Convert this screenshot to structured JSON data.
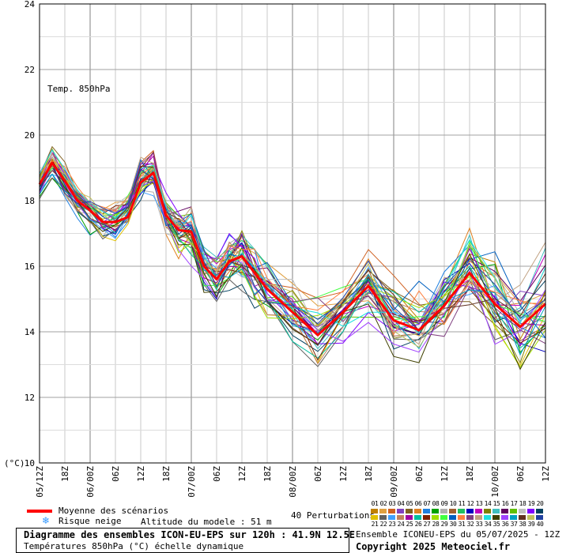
{
  "chart_data": {
    "type": "line",
    "title": "Diagramme des ensembles ICON-EU-EPS sur 120h : 41.9N 12.5E",
    "variable_label": "Temp. 850hPa",
    "ylabel": "(°C)",
    "ylim": [
      10,
      24
    ],
    "y_ticks": [
      10,
      12,
      14,
      16,
      18,
      20,
      22,
      24
    ],
    "x_ticks": [
      "05/12Z",
      "18Z",
      "06/00Z",
      "06Z",
      "12Z",
      "18Z",
      "07/00Z",
      "06Z",
      "12Z",
      "18Z",
      "08/00Z",
      "06Z",
      "12Z",
      "18Z",
      "09/00Z",
      "06Z",
      "12Z",
      "18Z",
      "10/00Z",
      "06Z",
      "12Z"
    ],
    "x_hours": [
      0,
      6,
      12,
      18,
      24,
      30,
      36,
      42,
      48,
      54,
      60,
      66,
      72,
      78,
      84,
      90,
      96,
      102,
      108,
      114,
      120
    ],
    "grid": true,
    "mean_series": {
      "name": "Moyenne des scénarios",
      "color": "#ff0000",
      "hours": [
        0,
        3,
        6,
        9,
        12,
        15,
        18,
        21,
        24,
        27,
        30,
        33,
        36,
        39,
        42,
        45,
        48,
        51,
        54,
        60,
        66,
        72,
        78,
        84,
        90,
        96,
        102,
        108,
        114,
        120
      ],
      "values": [
        18.5,
        19.15,
        18.6,
        18.0,
        17.7,
        17.35,
        17.35,
        17.5,
        18.55,
        18.85,
        17.55,
        17.1,
        17.05,
        16.0,
        15.6,
        16.15,
        16.3,
        15.8,
        15.3,
        14.6,
        13.9,
        14.6,
        15.4,
        14.35,
        14.05,
        14.8,
        15.8,
        14.85,
        14.15,
        14.85
      ]
    },
    "perturbations": {
      "count": 40,
      "hours": [
        0,
        3,
        6,
        9,
        12,
        15,
        18,
        21,
        24,
        27,
        30,
        33,
        36,
        39,
        42,
        45,
        48,
        51,
        54,
        60,
        66,
        72,
        78,
        84,
        90,
        96,
        102,
        108,
        114,
        120
      ],
      "colors": [
        "#c08000",
        "#e0a040",
        "#d06020",
        "#8040c0",
        "#806020",
        "#e08020",
        "#2080e0",
        "#00a000",
        "#b0b0b0",
        "#a06030",
        "#20c060",
        "#0000c0",
        "#c000c0",
        "#808000",
        "#40c0c0",
        "#600060",
        "#60c000",
        "#c0c0c0",
        "#8000ff",
        "#004060",
        "#e0c000",
        "#606060",
        "#40a0ff",
        "#c08060",
        "#a000a0",
        "#00c0a0",
        "#802000",
        "#a0e000",
        "#40ff40",
        "#0060c0",
        "#ff8040",
        "#804080",
        "#c0a080",
        "#20e0e0",
        "#404000",
        "#a040ff",
        "#00a0c0",
        "#603020",
        "#c0c060",
        "#2040a0"
      ]
    },
    "legend": {
      "mean_label": "Moyenne des scénarios",
      "snow_label": "Risque neige",
      "altitude_label": "Altitude du modele : 51 m",
      "perturbations_label": "40 Perturbations",
      "top_row_numbers": [
        "01",
        "02",
        "03",
        "04",
        "05",
        "06",
        "07",
        "08",
        "09",
        "10",
        "11",
        "12",
        "13",
        "14",
        "15",
        "16",
        "17",
        "18",
        "19",
        "20"
      ],
      "bottom_row_numbers": [
        "21",
        "22",
        "23",
        "24",
        "25",
        "26",
        "27",
        "28",
        "29",
        "30",
        "31",
        "32",
        "33",
        "34",
        "35",
        "36",
        "37",
        "38",
        "39",
        "40"
      ]
    }
  },
  "footer": {
    "box_title": "Diagramme des ensembles ICON-EU-EPS sur 120h : 41.9N 12.5E",
    "subtitle": "Températures 850hPa (°C) échelle dynamique",
    "run_info": "Ensemble ICONEU-EPS du 05/07/2025 - 12Z",
    "copyright": "Copyright 2025 Meteociel.fr"
  }
}
